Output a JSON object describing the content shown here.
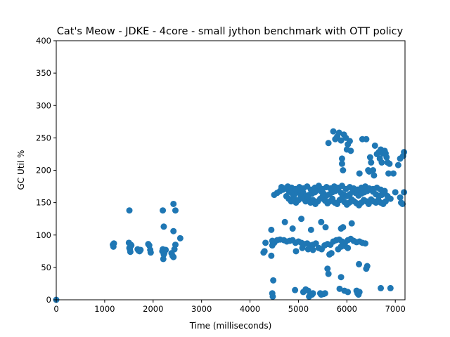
{
  "chart_data": {
    "type": "scatter",
    "title": "Cat's Meow - JDKE - 4core -  small jython benchmark with OTT policy",
    "xlabel": "Time (milliseconds)",
    "ylabel": "GC Util %",
    "xlim": [
      0,
      7200
    ],
    "ylim": [
      0,
      400
    ],
    "xticks": [
      0,
      1000,
      2000,
      3000,
      4000,
      5000,
      6000,
      7000
    ],
    "yticks": [
      0,
      50,
      100,
      150,
      200,
      250,
      300,
      350,
      400
    ],
    "grid": false,
    "marker_color": "#1f77b4",
    "series": [
      {
        "x": [
          0,
          1170,
          1180,
          1190,
          1500,
          1510,
          1520,
          1530,
          1540,
          1550,
          1680,
          1700,
          1720,
          1740,
          1900,
          1920,
          1940,
          1950,
          2190,
          2200,
          2210,
          2220,
          2230,
          2240,
          2260,
          2380,
          2400,
          2420,
          2440,
          2460,
          2560,
          1510,
          2200,
          2420,
          2220,
          2420,
          2460,
          4280,
          4300,
          4320,
          4440,
          4460,
          4480,
          4500,
          4440,
          4460,
          4500,
          4560,
          4620,
          4700,
          4760,
          4820,
          4880,
          4940,
          5000,
          5060,
          5120,
          5180,
          5240,
          5300,
          5360,
          5420,
          5480,
          5540,
          5600,
          5660,
          5720,
          5780,
          5840,
          5900,
          5960,
          6020,
          6080,
          6140,
          6200,
          6260,
          6320,
          6380,
          4500,
          4560,
          4620,
          4680,
          4740,
          4800,
          4860,
          4920,
          4980,
          5040,
          5100,
          5160,
          5220,
          5280,
          5340,
          5400,
          5460,
          5520,
          5580,
          5640,
          5700,
          5760,
          5820,
          5880,
          5940,
          6000,
          6060,
          6120,
          6180,
          6240,
          6300,
          6360,
          6420,
          6480,
          6540,
          6600,
          6660,
          6720,
          6780,
          6840,
          6900,
          7000,
          7100,
          7180,
          4750,
          4800,
          4850,
          4900,
          4950,
          5000,
          5050,
          5100,
          5150,
          5200,
          5250,
          5300,
          5350,
          5400,
          5450,
          5500,
          5550,
          5600,
          5650,
          5700,
          5750,
          5800,
          5850,
          5900,
          5950,
          6000,
          6050,
          6100,
          6150,
          6200,
          6250,
          6300,
          6350,
          6400,
          6450,
          6500,
          6550,
          6600,
          6650,
          6700,
          6750,
          6800,
          4650,
          4700,
          4780,
          4860,
          4940,
          5020,
          5100,
          5180,
          5260,
          5340,
          5420,
          5500,
          5580,
          5660,
          5740,
          5820,
          5900,
          5980,
          6060,
          6140,
          6220,
          6300,
          6380,
          6460,
          6540,
          6620,
          6700,
          6780,
          4720,
          4880,
          5060,
          5260,
          5470,
          5560,
          5880,
          5920,
          6100,
          4950,
          5080,
          5200,
          5300,
          5680,
          5820,
          5880,
          5960,
          6020,
          5620,
          5720,
          5760,
          5800,
          5840,
          5880,
          5900,
          5940,
          5980,
          6020,
          6060,
          5900,
          5920,
          6000,
          6080,
          6260,
          6320,
          6400,
          6480,
          6500,
          6540,
          6580,
          6620,
          6660,
          6700,
          6740,
          6780,
          6800,
          6840,
          6880,
          6960,
          7060,
          7100,
          7160,
          7180,
          6440,
          6460,
          6560,
          6680,
          6720,
          6820,
          6860,
          4460,
          4470,
          4480,
          4930,
          5100,
          5150,
          5200,
          5220,
          5280,
          5300,
          5450,
          5470,
          5500,
          5520,
          5550,
          5600,
          5620,
          5640,
          5850,
          5880,
          5950,
          6020,
          6200,
          6220,
          6240,
          6260,
          6250,
          6400,
          6420,
          6700,
          6900,
          7120,
          7150
        ],
        "y": [
          0,
          85,
          82,
          87,
          88,
          80,
          78,
          74,
          85,
          84,
          78,
          76,
          75,
          77,
          86,
          84,
          77,
          73,
          75,
          78,
          63,
          70,
          72,
          76,
          77,
          72,
          68,
          66,
          78,
          85,
          95,
          138,
          138,
          148,
          113,
          106,
          138,
          73,
          75,
          88,
          68,
          84,
          87,
          90,
          108,
          91,
          88,
          92,
          93,
          92,
          90,
          91,
          92,
          88,
          90,
          88,
          86,
          87,
          84,
          85,
          87,
          80,
          78,
          84,
          86,
          85,
          90,
          92,
          93,
          90,
          88,
          92,
          94,
          91,
          89,
          90,
          88,
          87,
          162,
          165,
          168,
          170,
          172,
          168,
          165,
          163,
          166,
          168,
          165,
          160,
          162,
          164,
          166,
          170,
          168,
          164,
          161,
          163,
          166,
          168,
          170,
          165,
          162,
          160,
          163,
          167,
          165,
          161,
          164,
          166,
          168,
          170,
          167,
          163,
          160,
          162,
          165,
          160,
          156,
          166,
          158,
          166,
          160,
          156,
          152,
          158,
          150,
          154,
          160,
          156,
          152,
          158,
          150,
          154,
          148,
          152,
          156,
          160,
          153,
          149,
          152,
          156,
          150,
          148,
          154,
          157,
          151,
          147,
          150,
          155,
          152,
          149,
          146,
          150,
          154,
          152,
          148,
          155,
          152,
          150,
          154,
          150,
          148,
          152,
          174,
          172,
          175,
          173,
          171,
          174,
          172,
          175,
          170,
          173,
          176,
          171,
          174,
          172,
          175,
          173,
          176,
          171,
          174,
          172,
          170,
          173,
          175,
          172,
          171,
          173,
          170,
          168,
          120,
          110,
          125,
          108,
          120,
          112,
          110,
          112,
          118,
          75,
          80,
          78,
          77,
          72,
          78,
          82,
          83,
          80,
          242,
          260,
          248,
          252,
          258,
          246,
          218,
          255,
          250,
          240,
          245,
          210,
          200,
          232,
          230,
          195,
          248,
          248,
          220,
          212,
          200,
          238,
          225,
          228,
          232,
          226,
          230,
          226,
          212,
          210,
          195,
          208,
          218,
          222,
          228,
          200,
          198,
          192,
          218,
          212,
          220,
          195,
          10,
          5,
          30,
          15,
          12,
          16,
          14,
          5,
          8,
          10,
          10,
          8,
          9,
          9,
          10,
          48,
          40,
          70,
          17,
          35,
          14,
          12,
          14,
          10,
          8,
          12,
          55,
          48,
          52,
          18,
          18,
          150,
          148
        ]
      }
    ]
  }
}
